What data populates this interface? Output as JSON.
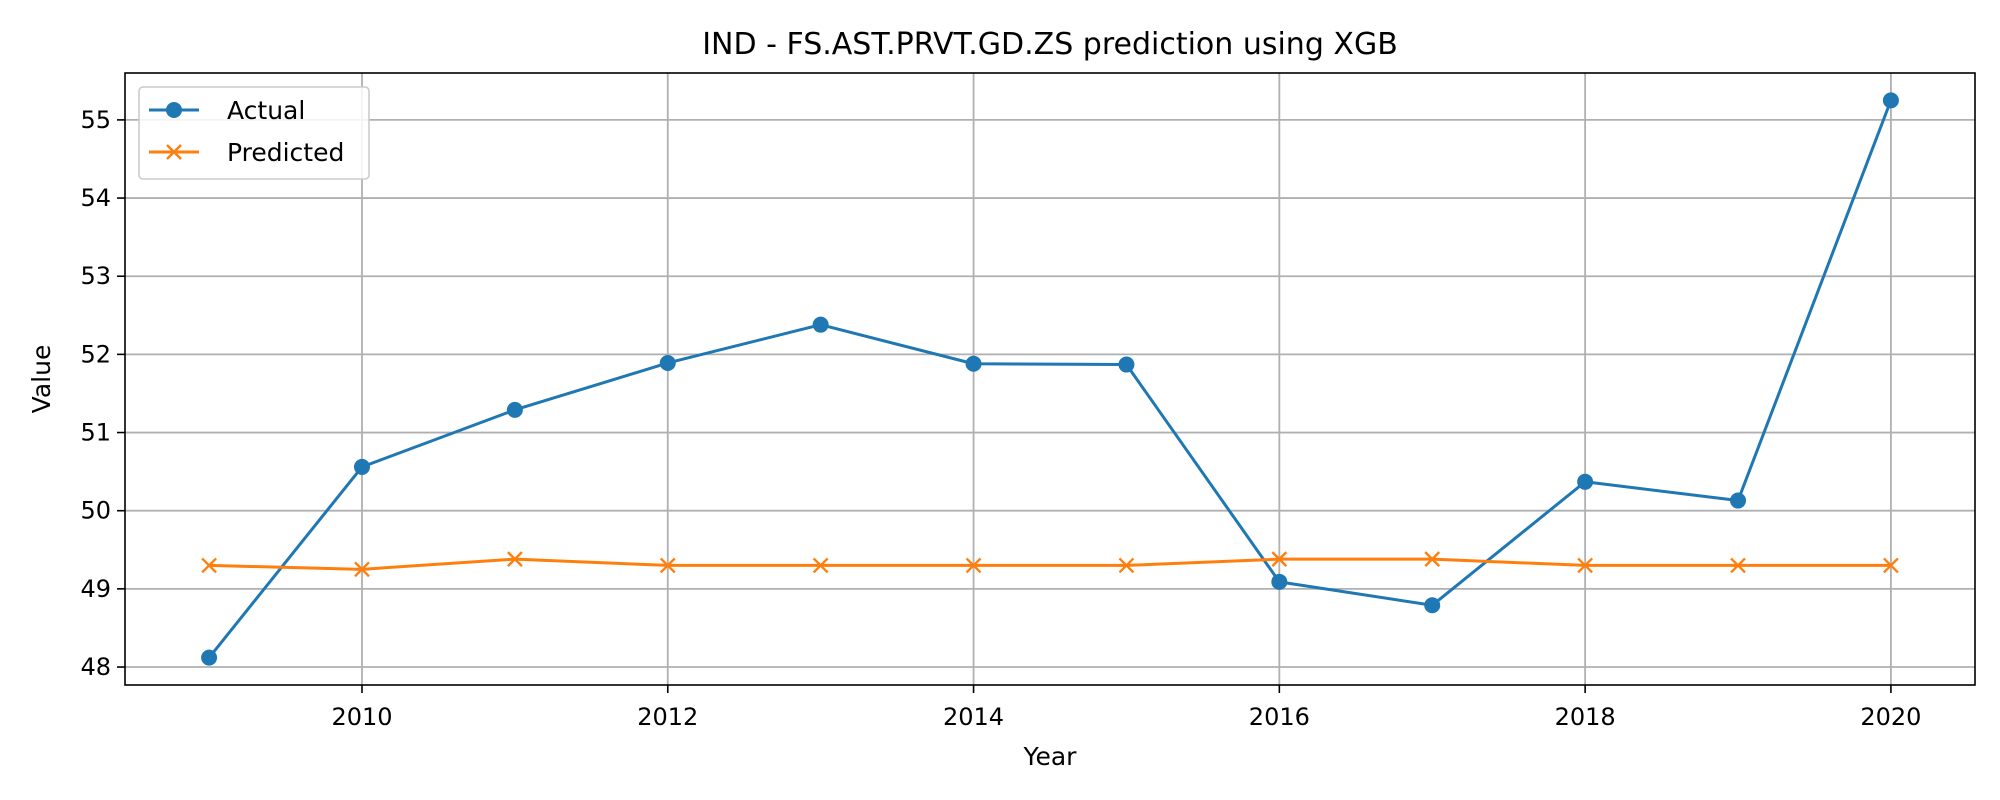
{
  "chart_data": {
    "type": "line",
    "title": "IND - FS.AST.PRVT.GD.ZS prediction using XGB",
    "xlabel": "Year",
    "ylabel": "Value",
    "x": [
      2009,
      2010,
      2011,
      2012,
      2013,
      2014,
      2015,
      2016,
      2017,
      2018,
      2019,
      2020
    ],
    "xlim": [
      2008.45,
      2020.55
    ],
    "ylim": [
      47.77,
      55.6
    ],
    "xticks": [
      2010,
      2012,
      2014,
      2016,
      2018,
      2020
    ],
    "yticks": [
      48,
      49,
      50,
      51,
      52,
      53,
      54,
      55
    ],
    "grid": true,
    "legend_position": "upper-left",
    "series": [
      {
        "name": "Actual",
        "color": "#1f77b4",
        "marker": "circle",
        "values": [
          48.12,
          50.56,
          51.29,
          51.89,
          52.38,
          51.88,
          51.87,
          49.09,
          48.79,
          50.37,
          50.13,
          55.25
        ]
      },
      {
        "name": "Predicted",
        "color": "#ff7f0e",
        "marker": "x",
        "values": [
          49.3,
          49.25,
          49.38,
          49.3,
          49.3,
          49.3,
          49.3,
          49.38,
          49.38,
          49.3,
          49.3,
          49.3
        ]
      }
    ]
  }
}
